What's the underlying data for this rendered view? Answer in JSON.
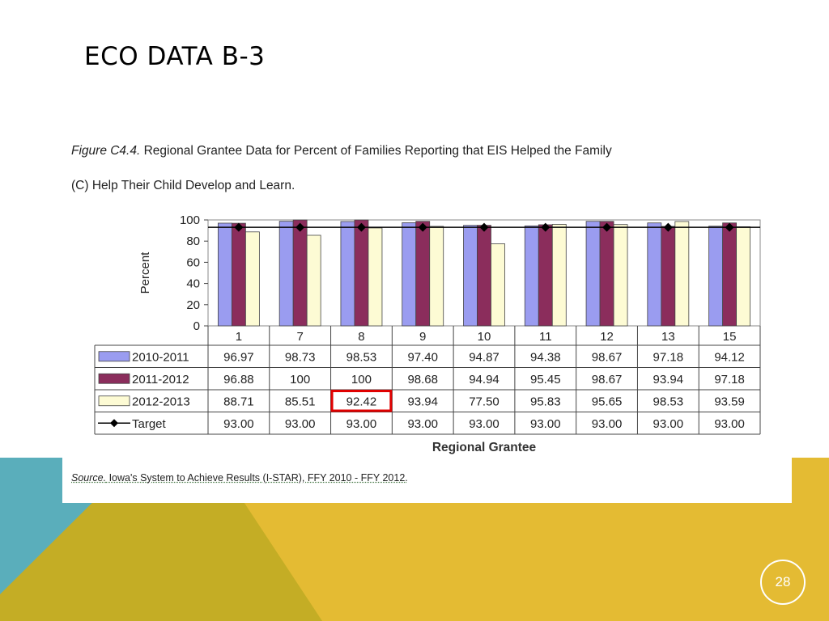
{
  "slide": {
    "title": "ECO DATA B-3",
    "page_number": "28",
    "colors": {
      "teal": "#5aaebb",
      "olive": "#c4ad25",
      "gold": "#e4bb33"
    }
  },
  "figure": {
    "caption_label": "Figure  C4.4.",
    "caption_line1": " Regional Grantee  Data for Percent of Families Reporting that EIS Helped the Family",
    "caption_line2": "(C) Help Their  Child  Develop and Learn.",
    "source_label": "Source.",
    "source_text": " Iowa's System to Achieve Results (I-STAR), FFY 2010 - FFY 2012."
  },
  "chart_data": {
    "type": "bar",
    "title": "",
    "xlabel": "Regional Grantee",
    "ylabel": "Percent",
    "ylim": [
      0,
      100
    ],
    "yticks": [
      0,
      20,
      40,
      60,
      80,
      100
    ],
    "grid": false,
    "legend": "data-table-left",
    "categories": [
      "1",
      "7",
      "8",
      "9",
      "10",
      "11",
      "12",
      "13",
      "15"
    ],
    "series": [
      {
        "name": "2010-2011",
        "kind": "bar",
        "color": "#9a9cf0",
        "values": [
          96.97,
          98.73,
          98.53,
          97.4,
          94.87,
          94.38,
          98.67,
          97.18,
          94.12
        ],
        "labels": [
          "96.97",
          "98.73",
          "98.53",
          "97.40",
          "94.87",
          "94.38",
          "98.67",
          "97.18",
          "94.12"
        ]
      },
      {
        "name": "2011-2012",
        "kind": "bar",
        "color": "#8b2d5c",
        "values": [
          96.88,
          100,
          100,
          98.68,
          94.94,
          95.45,
          98.67,
          93.94,
          97.18
        ],
        "labels": [
          "96.88",
          "100",
          "100",
          "98.68",
          "94.94",
          "95.45",
          "98.67",
          "93.94",
          "97.18"
        ]
      },
      {
        "name": "2012-2013",
        "kind": "bar",
        "color": "#fdfbd4",
        "values": [
          88.71,
          85.51,
          92.42,
          93.94,
          77.5,
          95.83,
          95.65,
          98.53,
          93.59
        ],
        "labels": [
          "88.71",
          "85.51",
          "92.42",
          "93.94",
          "77.50",
          "95.83",
          "95.65",
          "98.53",
          "93.59"
        ]
      },
      {
        "name": "Target",
        "kind": "line",
        "color": "#000000",
        "values": [
          93.0,
          93.0,
          93.0,
          93.0,
          93.0,
          93.0,
          93.0,
          93.0,
          93.0
        ],
        "labels": [
          "93.00",
          "93.00",
          "93.00",
          "93.00",
          "93.00",
          "93.00",
          "93.00",
          "93.00",
          "93.00"
        ]
      }
    ],
    "highlight": {
      "series": "2012-2013",
      "category": "8",
      "color": "#e00000"
    }
  }
}
